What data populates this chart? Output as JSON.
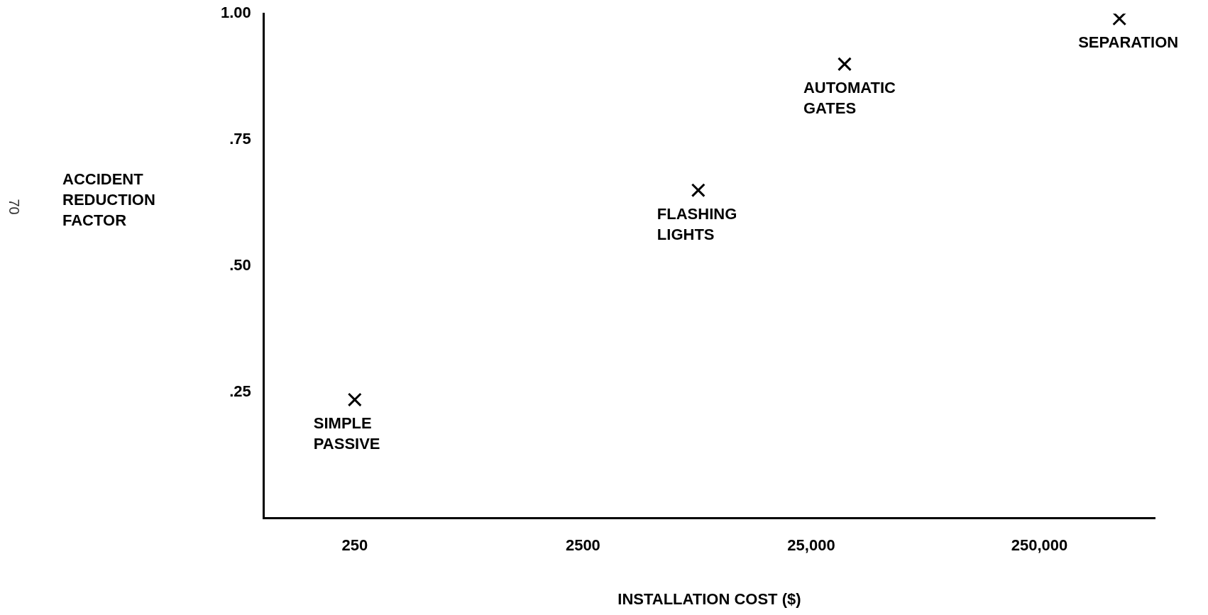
{
  "chart_data": {
    "type": "scatter",
    "xlabel": "INSTALLATION COST ($)",
    "ylabel": "ACCIDENT\nREDUCTION\nFACTOR",
    "x": [
      250,
      8000,
      35000,
      560000
    ],
    "values": [
      0.235,
      0.65,
      0.9,
      0.99
    ],
    "color": "#000000",
    "marker": "cross",
    "log": "x",
    "grid": false,
    "legend": false,
    "xlim": [
      100,
      800000
    ],
    "xticks": [
      250,
      2500,
      {
        "value": 25000,
        "label": "25,000"
      },
      {
        "value": 250000,
        "label": "250,000"
      }
    ],
    "ylim": [
      0,
      1
    ],
    "yticks": [
      {
        "value": 0.25,
        "label": ".25"
      },
      {
        "value": 0.5,
        "label": ".50"
      },
      {
        "value": 0.75,
        "label": ".75"
      },
      {
        "value": 1,
        "label": "1.00"
      }
    ],
    "annotations": [
      {
        "text": "SIMPLE\nPASSIVE",
        "x": 250,
        "y": 0.235
      },
      {
        "text": "FLASHING\nLIGHTS",
        "x": 8000,
        "y": 0.65
      },
      {
        "text": "AUTOMATIC\nGATES",
        "x": 35000,
        "y": 0.9
      },
      {
        "text": "SEPARATION",
        "x": 560000,
        "y": 0.99
      },
      "70"
    ]
  }
}
